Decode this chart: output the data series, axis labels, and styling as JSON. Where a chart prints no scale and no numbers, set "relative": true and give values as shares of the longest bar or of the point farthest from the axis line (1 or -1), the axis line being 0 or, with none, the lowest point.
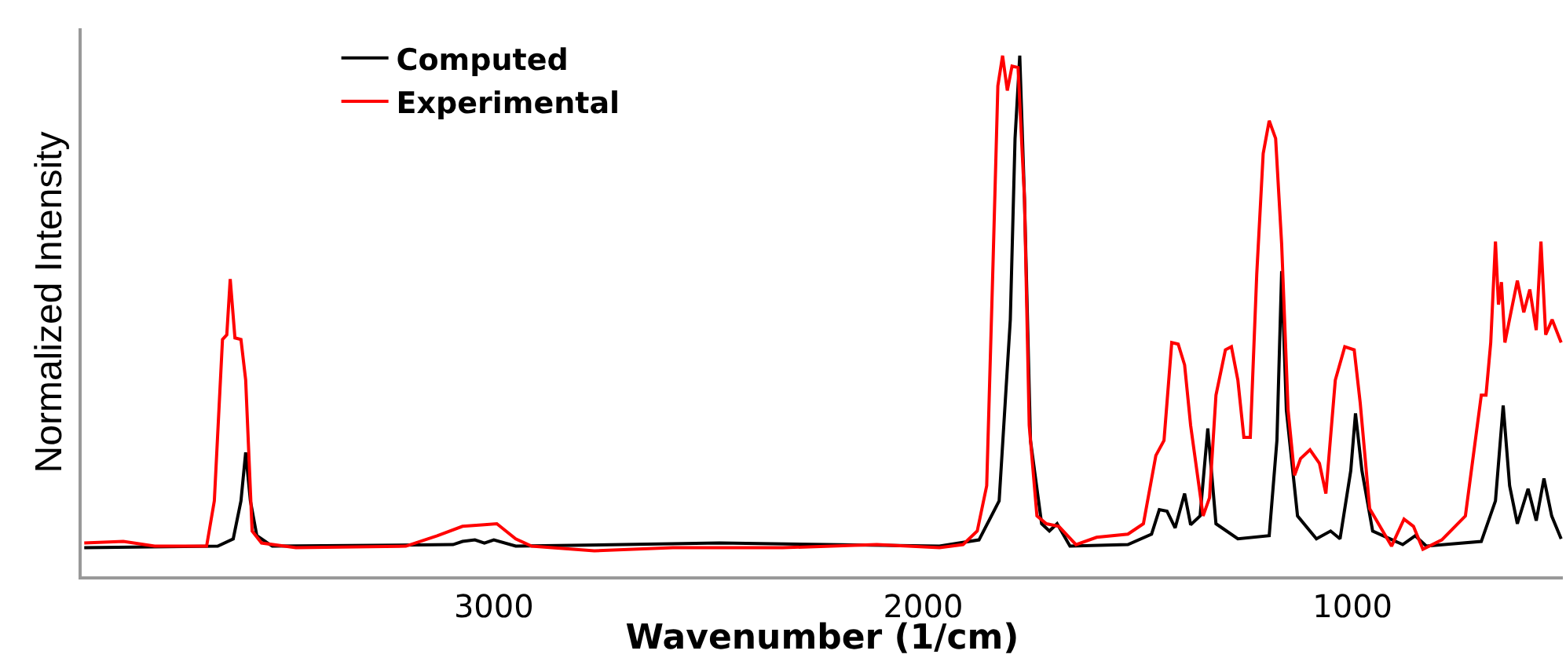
{
  "chart_data": {
    "type": "line",
    "relative": true,
    "xlabel": "Wavenumber (1/cm)",
    "ylabel": "Normalized Intensity",
    "xlim": [
      3960,
      510
    ],
    "xticks": [
      3000,
      2000,
      1000
    ],
    "grid": false,
    "legend": "top left",
    "marker": "none",
    "line_style": "solid",
    "series": [
      {
        "name": "Computed",
        "color": "#000000",
        "x": [
          3954,
          3643,
          3607,
          3589,
          3578,
          3567,
          3552,
          3516,
          3095,
          3073,
          3044,
          3022,
          3000,
          2949,
          2474,
          1962,
          1870,
          1823,
          1797,
          1786,
          1775,
          1764,
          1750,
          1724,
          1706,
          1688,
          1658,
          1523,
          1468,
          1450,
          1432,
          1413,
          1391,
          1377,
          1355,
          1337,
          1318,
          1267,
          1194,
          1176,
          1165,
          1154,
          1128,
          1084,
          1051,
          1029,
          1004,
          993,
          978,
          953,
          883,
          854,
          828,
          700,
          667,
          649,
          634,
          616,
          591,
          572,
          554,
          536,
          514
        ],
        "values": [
          0.055,
          0.058,
          0.072,
          0.145,
          0.238,
          0.145,
          0.078,
          0.058,
          0.061,
          0.067,
          0.07,
          0.064,
          0.07,
          0.058,
          0.064,
          0.058,
          0.07,
          0.145,
          0.493,
          0.841,
          1.0,
          0.725,
          0.261,
          0.101,
          0.087,
          0.101,
          0.058,
          0.061,
          0.081,
          0.128,
          0.125,
          0.093,
          0.159,
          0.099,
          0.116,
          0.284,
          0.101,
          0.072,
          0.078,
          0.261,
          0.586,
          0.319,
          0.116,
          0.072,
          0.087,
          0.072,
          0.203,
          0.313,
          0.203,
          0.087,
          0.061,
          0.078,
          0.058,
          0.067,
          0.145,
          0.328,
          0.174,
          0.101,
          0.168,
          0.107,
          0.188,
          0.116,
          0.072
        ]
      },
      {
        "name": "Experimental",
        "color": "#ff0000",
        "x": [
          3954,
          3863,
          3790,
          3669,
          3651,
          3632,
          3622,
          3614,
          3603,
          3589,
          3578,
          3563,
          3541,
          3461,
          3205,
          3132,
          3073,
          3022,
          2993,
          2949,
          2912,
          2766,
          2583,
          2327,
          2108,
          1962,
          1907,
          1874,
          1852,
          1837,
          1826,
          1815,
          1804,
          1793,
          1779,
          1764,
          1753,
          1735,
          1713,
          1684,
          1644,
          1596,
          1523,
          1487,
          1458,
          1439,
          1421,
          1406,
          1391,
          1377,
          1348,
          1333,
          1318,
          1296,
          1282,
          1267,
          1253,
          1238,
          1223,
          1208,
          1194,
          1179,
          1165,
          1150,
          1135,
          1121,
          1099,
          1077,
          1062,
          1040,
          1018,
          996,
          982,
          960,
          909,
          880,
          858,
          836,
          792,
          737,
          700,
          689,
          678,
          667,
          660,
          653,
          645,
          631,
          616,
          601,
          587,
          572,
          561,
          550,
          535,
          514
        ],
        "values": [
          0.064,
          0.067,
          0.058,
          0.058,
          0.145,
          0.455,
          0.464,
          0.571,
          0.458,
          0.455,
          0.377,
          0.087,
          0.064,
          0.055,
          0.058,
          0.078,
          0.096,
          0.099,
          0.101,
          0.072,
          0.058,
          0.049,
          0.055,
          0.055,
          0.061,
          0.055,
          0.061,
          0.087,
          0.174,
          0.609,
          0.942,
          1.0,
          0.933,
          0.98,
          0.977,
          0.725,
          0.29,
          0.116,
          0.101,
          0.096,
          0.061,
          0.075,
          0.081,
          0.101,
          0.232,
          0.261,
          0.449,
          0.446,
          0.406,
          0.29,
          0.116,
          0.151,
          0.348,
          0.435,
          0.441,
          0.377,
          0.267,
          0.267,
          0.58,
          0.812,
          0.875,
          0.841,
          0.638,
          0.319,
          0.194,
          0.226,
          0.243,
          0.217,
          0.159,
          0.377,
          0.441,
          0.435,
          0.333,
          0.13,
          0.058,
          0.11,
          0.096,
          0.052,
          0.07,
          0.116,
          0.348,
          0.348,
          0.449,
          0.643,
          0.522,
          0.565,
          0.449,
          0.507,
          0.568,
          0.507,
          0.551,
          0.473,
          0.643,
          0.464,
          0.493,
          0.449
        ]
      }
    ]
  }
}
